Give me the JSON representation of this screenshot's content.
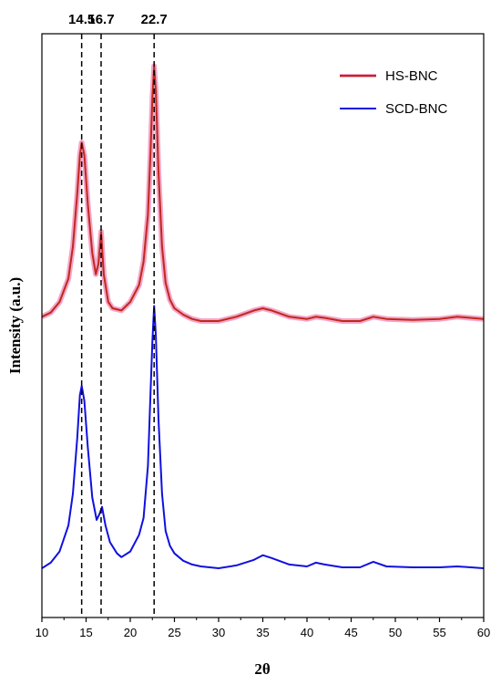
{
  "chart_data": {
    "type": "line",
    "title": "",
    "xlabel": "2θ",
    "ylabel": "Intensity (a.u.)",
    "xlim": [
      10,
      60
    ],
    "x_ticks": [
      10,
      15,
      20,
      25,
      30,
      35,
      40,
      45,
      50,
      55,
      60
    ],
    "y_ticks_shown": false,
    "grid": false,
    "legend_position": "top-right",
    "peak_markers": [
      {
        "x": 14.5,
        "label": "14.5"
      },
      {
        "x": 16.7,
        "label": "16.7"
      },
      {
        "x": 22.7,
        "label": "22.7"
      }
    ],
    "series": [
      {
        "name": "HS-BNC",
        "color": "#c0281e",
        "halo_color": "#f4a6c8",
        "x": [
          10,
          11,
          12,
          13,
          13.5,
          14,
          14.3,
          14.5,
          14.8,
          15.2,
          15.7,
          16.1,
          16.4,
          16.7,
          17.0,
          17.5,
          18,
          19,
          20,
          21,
          21.5,
          22,
          22.3,
          22.5,
          22.7,
          22.9,
          23.2,
          23.6,
          24,
          24.5,
          25,
          26,
          27,
          28,
          30,
          32,
          34,
          35,
          36,
          38,
          40,
          41,
          42,
          44,
          46,
          47.5,
          49,
          52,
          55,
          57,
          60
        ],
        "y": [
          0.2,
          0.4,
          0.9,
          2.0,
          3.5,
          6.0,
          7.8,
          8.4,
          7.8,
          5.5,
          3.2,
          2.2,
          2.7,
          4.2,
          2.2,
          0.9,
          0.6,
          0.5,
          0.9,
          1.7,
          2.8,
          5.0,
          8.0,
          10.5,
          12.0,
          10.8,
          7.0,
          3.5,
          1.8,
          1.0,
          0.6,
          0.3,
          0.1,
          0.0,
          0.0,
          0.2,
          0.5,
          0.6,
          0.5,
          0.2,
          0.1,
          0.2,
          0.15,
          0.0,
          0.0,
          0.2,
          0.1,
          0.05,
          0.1,
          0.2,
          0.1
        ]
      },
      {
        "name": "SCD-BNC",
        "color": "#1010e0",
        "x": [
          10,
          11,
          12,
          13,
          13.5,
          14,
          14.3,
          14.5,
          14.8,
          15.2,
          15.7,
          16.2,
          16.5,
          16.8,
          17.2,
          17.7,
          18.5,
          19,
          20,
          21,
          21.5,
          22,
          22.3,
          22.5,
          22.7,
          22.9,
          23.2,
          23.6,
          24,
          24.5,
          25,
          26,
          27,
          28,
          30,
          32,
          34,
          35,
          36,
          38,
          40,
          41,
          42,
          44,
          46,
          47.5,
          49,
          52,
          55,
          57,
          60
        ],
        "y": [
          0.0,
          0.3,
          0.9,
          2.3,
          4.0,
          7.0,
          9.3,
          9.8,
          9.0,
          6.5,
          3.8,
          2.6,
          2.9,
          3.3,
          2.3,
          1.4,
          0.8,
          0.6,
          0.9,
          1.8,
          2.7,
          5.5,
          9.5,
          12.2,
          14.1,
          12.5,
          8.0,
          4.0,
          2.0,
          1.2,
          0.8,
          0.4,
          0.2,
          0.1,
          0.0,
          0.15,
          0.45,
          0.7,
          0.55,
          0.2,
          0.1,
          0.3,
          0.2,
          0.05,
          0.05,
          0.35,
          0.1,
          0.05,
          0.05,
          0.1,
          0.0
        ]
      }
    ]
  }
}
